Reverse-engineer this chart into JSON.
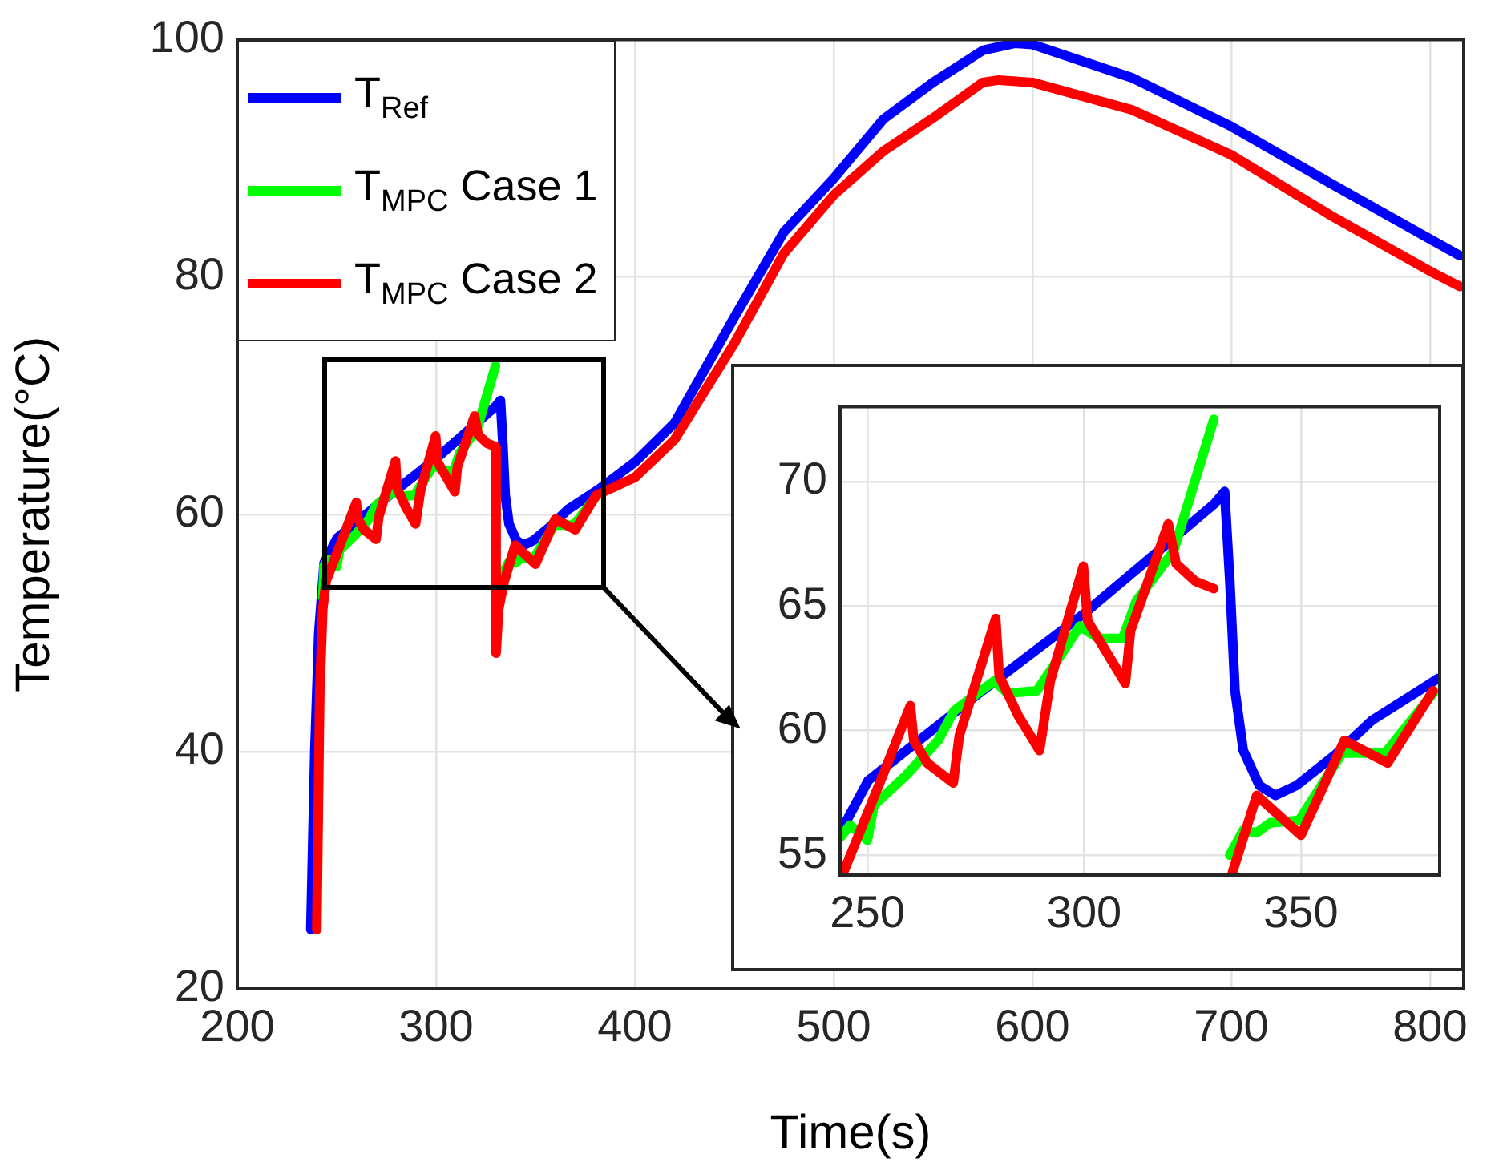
{
  "chart_data": [
    {
      "type": "line",
      "xlabel": "Time(s)",
      "ylabel": "Temperature(°C)",
      "xlim": [
        200,
        817
      ],
      "ylim": [
        20,
        100
      ],
      "xticks": [
        200,
        300,
        400,
        500,
        600,
        700,
        800
      ],
      "yticks": [
        20,
        40,
        60,
        80,
        100
      ],
      "grid": true,
      "legend": "top left",
      "marker": "none",
      "series": [
        {
          "name": "T$_{Ref}$",
          "color": "#0000ff",
          "x": [
            237,
            239,
            241,
            243.7,
            250.2,
            275,
            300,
            330,
            332.4,
            333.6,
            334.8,
            336.7,
            340.4,
            344.1,
            349,
            357.7,
            366.3,
            381.7,
            400,
            420,
            450,
            475,
            500,
            525,
            550,
            575,
            591,
            600,
            650,
            700,
            750,
            800,
            815
          ],
          "values": [
            25,
            40,
            50,
            55.9,
            58.0,
            61.4,
            64.7,
            69.1,
            69.6,
            66.0,
            61.6,
            59.2,
            57.8,
            57.4,
            57.8,
            59.0,
            60.4,
            62.1,
            64.4,
            67.7,
            76.6,
            83.8,
            88.3,
            93.3,
            96.4,
            99.1,
            99.7,
            99.6,
            96.8,
            92.7,
            87.9,
            83.2,
            81.8
          ]
        },
        {
          "name": "T$_{MPC}$ Case 1",
          "color": "#00ff00",
          "x": [
            243,
            243.7,
            246,
            250,
            251.5,
            258.9,
            266.3,
            270,
            279.3,
            282.3,
            289.1,
            292.2,
            299,
            303.3,
            308.9,
            312,
            320.6,
            329.9,
            331.5,
            333.6,
            336.7,
            339.8,
            342.9,
            349.6,
            354,
            359.5,
            369.4,
            380.5
          ],
          "values": [
            53,
            55.7,
            56.2,
            55.6,
            57.0,
            58.2,
            59.6,
            60.8,
            62.0,
            61.5,
            61.6,
            62.4,
            64.2,
            63.7,
            63.7,
            65.2,
            67.2,
            72.5,
            null,
            55.0,
            56.0,
            55.9,
            56.3,
            56.4,
            57.6,
            59.1,
            59.1,
            61.5
          ]
        },
        {
          "name": "T$_{MPC}$ Case 2",
          "color": "#ff0000",
          "x": [
            240,
            241.5,
            243,
            244.7,
            254,
            259.9,
            260.7,
            263.8,
            269.8,
            271.2,
            279.6,
            280.4,
            284.8,
            289.7,
            292.2,
            299.8,
            300.8,
            309.5,
            310.7,
            319.4,
            321.2,
            325.6,
            329.9,
            330.2,
            331.5,
            334.2,
            339.8,
            350,
            360,
            370,
            380.5,
            400,
            420,
            450,
            475,
            500,
            525,
            550,
            575,
            583,
            600,
            650,
            700,
            750,
            800,
            815
          ],
          "values": [
            25,
            45,
            52,
            54.4,
            58.4,
            61.0,
            59.6,
            58.7,
            57.9,
            59.8,
            64.5,
            62.2,
            60.6,
            59.2,
            62.0,
            66.6,
            64.4,
            61.9,
            64.0,
            68.3,
            66.7,
            66.0,
            65.7,
            48.3,
            52,
            54.3,
            57.4,
            55.8,
            59.6,
            58.7,
            61.6,
            63.1,
            66.3,
            74.4,
            82.0,
            86.9,
            90.6,
            93.4,
            96.4,
            96.6,
            96.4,
            94.1,
            90.3,
            85.2,
            80.5,
            79.2
          ]
        }
      ]
    },
    {
      "type": "line",
      "xlim": [
        243.7,
        382
      ],
      "ylim": [
        54.2,
        73
      ],
      "xticks": [
        250,
        300,
        350
      ],
      "yticks": [
        55,
        60,
        65,
        70
      ],
      "grid": true,
      "marker": "none",
      "series": [
        {
          "color": "#0000ff",
          "x": [
            243.7,
            250.2,
            275,
            300,
            330,
            332.4,
            333.6,
            334.8,
            336.7,
            340.4,
            344.1,
            349,
            357.7,
            366.3,
            381.7
          ],
          "values": [
            55.9,
            58.0,
            61.4,
            64.7,
            69.1,
            69.6,
            66.0,
            61.6,
            59.2,
            57.8,
            57.4,
            57.8,
            59.0,
            60.4,
            62.1
          ]
        },
        {
          "color": "#00ff00",
          "x": [
            243.7,
            246,
            250,
            251.5,
            258.9,
            266.3,
            270,
            279.3,
            282.3,
            289.1,
            292.2,
            299,
            303.3,
            308.9,
            312,
            320.6,
            329.9,
            330.3,
            331.5,
            332.8,
            333.6,
            336.7,
            339.8,
            342.9,
            349.6,
            354,
            359.5,
            369.4,
            380.5
          ],
          "values": [
            55.7,
            56.2,
            55.6,
            57.0,
            58.2,
            59.6,
            60.8,
            62.0,
            61.5,
            61.6,
            62.4,
            64.2,
            63.7,
            63.7,
            65.2,
            67.2,
            72.5,
            null,
            null,
            null,
            55.0,
            56.0,
            55.9,
            56.3,
            56.4,
            57.6,
            59.1,
            59.1,
            61.5
          ]
        },
        {
          "color": "#ff0000",
          "x": [
            244.7,
            254,
            259.9,
            260.7,
            263.8,
            269.8,
            271.2,
            279.6,
            280.4,
            284.8,
            289.7,
            292.2,
            299.8,
            300.8,
            309.5,
            310.7,
            319.4,
            321.2,
            325.6,
            329.9,
            329.95,
            332,
            334.2,
            339.8,
            350,
            360,
            370,
            380.5
          ],
          "values": [
            54.4,
            58.4,
            61.0,
            59.6,
            58.7,
            57.9,
            59.8,
            64.5,
            62.2,
            60.6,
            59.2,
            62.0,
            66.6,
            64.4,
            61.9,
            64.0,
            68.3,
            66.7,
            66.0,
            65.7,
            null,
            null,
            54.3,
            57.4,
            55.8,
            59.6,
            58.7,
            61.6
          ]
        }
      ]
    }
  ]
}
